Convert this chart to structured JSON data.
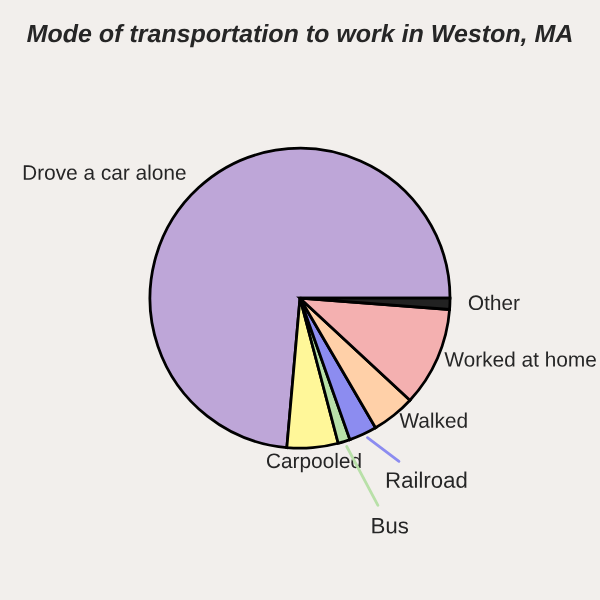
{
  "chart_data": {
    "type": "pie",
    "title": "Mode of transportation to work in Weston, MA",
    "categories": [
      "Drove a car alone",
      "Carpooled",
      "Bus",
      "Railroad",
      "Walked",
      "Worked at home",
      "Other"
    ],
    "values": [
      73.6,
      5.5,
      1.3,
      3.0,
      4.7,
      10.7,
      1.2
    ],
    "colors": [
      "#bea6d8",
      "#fff799",
      "#b8e0a8",
      "#8c8cf0",
      "#ffd0a8",
      "#f4b0b0",
      "#222222"
    ]
  }
}
